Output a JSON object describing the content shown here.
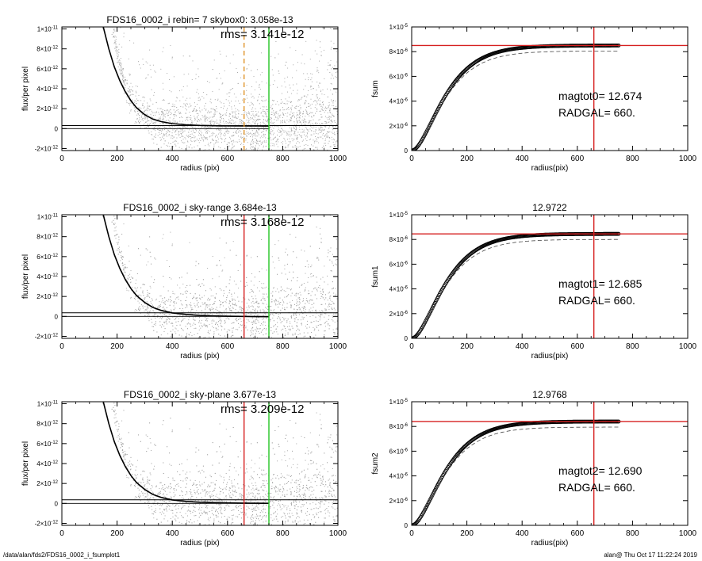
{
  "footer": {
    "left": "/data/alan/fds2/FDS16_0002_i_fsumplot1",
    "right": "alan@  Thu Oct 17 11:22:24 2019"
  },
  "colors": {
    "scatter": "#a8a8a8",
    "profile": "#000000",
    "red_marker": "#d62020",
    "green_marker": "#22c422",
    "orange_marker": "#e0952a",
    "dashed_curve": "#444444"
  },
  "chart_data": [
    {
      "type": "scatter",
      "panel": "left-1",
      "title": "FDS16_0002_i rebin= 7    skybox0:  3.058e-13",
      "annotation": "rms= 3.141e-12",
      "xlabel": "radius (pix)",
      "ylabel": "flux/per pixel",
      "xlim": [
        0,
        1000
      ],
      "ylim": [
        -2.2e-12,
        1.02e-11
      ],
      "xticks": [
        "0",
        "200",
        "400",
        "600",
        "800",
        "1000"
      ],
      "yticks": [
        {
          "value": -2e-12,
          "mant": "-2×10",
          "exp": "-12"
        },
        {
          "value": 0,
          "mant": "0",
          "exp": ""
        },
        {
          "value": 2e-12,
          "mant": "2×10",
          "exp": "-12"
        },
        {
          "value": 4e-12,
          "mant": "4×10",
          "exp": "-12"
        },
        {
          "value": 6e-12,
          "mant": "6×10",
          "exp": "-12"
        },
        {
          "value": 8e-12,
          "mant": "8×10",
          "exp": "-12"
        },
        {
          "value": 1e-11,
          "mant": "1×10",
          "exp": "-11"
        }
      ],
      "sky_level": 3.058e-13,
      "rms": 3.141e-12,
      "markers": [
        {
          "x": 660,
          "color": "#e0952a",
          "style": "dashed",
          "span": "full"
        },
        {
          "x": 750,
          "color": "#22c422",
          "style": "solid",
          "span": "full"
        }
      ],
      "profile": {
        "x": [
          150,
          170,
          190,
          210,
          230,
          250,
          270,
          300,
          330,
          360,
          400,
          450,
          500,
          550,
          600,
          650,
          700,
          750
        ],
        "y": [
          1.02e-11,
          8e-12,
          6.2e-12,
          4.8e-12,
          3.7e-12,
          2.8e-12,
          2.1e-12,
          1.4e-12,
          9.5e-13,
          7e-13,
          5e-13,
          3.8e-13,
          3.2e-13,
          2.9e-13,
          2.8e-13,
          2.7e-13,
          2.7e-13,
          2.6e-13
        ]
      }
    },
    {
      "type": "line",
      "panel": "right-1",
      "title": "",
      "xlabel": "radius(pix)",
      "ylabel": "fsum",
      "xlim": [
        0,
        1000
      ],
      "ylim": [
        0,
        1e-05
      ],
      "xticks": [
        "0",
        "200",
        "400",
        "600",
        "800",
        "1000"
      ],
      "yticks": [
        {
          "value": 0,
          "mant": "0",
          "exp": ""
        },
        {
          "value": 2e-06,
          "mant": "2×10",
          "exp": "-6"
        },
        {
          "value": 4e-06,
          "mant": "4×10",
          "exp": "-6"
        },
        {
          "value": 6e-06,
          "mant": "6×10",
          "exp": "-6"
        },
        {
          "value": 8e-06,
          "mant": "8×10",
          "exp": "-6"
        },
        {
          "value": 1e-05,
          "mant": "1×10",
          "exp": "-5"
        }
      ],
      "labels": [
        "magtot0=  12.674",
        "RADGAL=    660."
      ],
      "asymptote": 8.5e-06,
      "dashed_asymptote": 8.05e-06,
      "curve_xmax": 750,
      "vline_x": 660,
      "hline_y": 8.5e-06
    },
    {
      "type": "scatter",
      "panel": "left-2",
      "title": "FDS16_0002_i sky-range  3.684e-13",
      "annotation": "rms= 3.168e-12",
      "xlabel": "radius (pix)",
      "ylabel": "flux/per pixel",
      "xlim": [
        0,
        1000
      ],
      "ylim": [
        -2.2e-12,
        1.02e-11
      ],
      "xticks": [
        "0",
        "200",
        "400",
        "600",
        "800",
        "1000"
      ],
      "yticks": [
        {
          "value": -2e-12,
          "mant": "-2×10",
          "exp": "-12"
        },
        {
          "value": 0,
          "mant": "0",
          "exp": ""
        },
        {
          "value": 2e-12,
          "mant": "2×10",
          "exp": "-12"
        },
        {
          "value": 4e-12,
          "mant": "4×10",
          "exp": "-12"
        },
        {
          "value": 6e-12,
          "mant": "6×10",
          "exp": "-12"
        },
        {
          "value": 8e-12,
          "mant": "8×10",
          "exp": "-12"
        },
        {
          "value": 1e-11,
          "mant": "1×10",
          "exp": "-11"
        }
      ],
      "sky_level": 3.684e-13,
      "rms": 3.168e-12,
      "markers": [
        {
          "x": 660,
          "color": "#d62020",
          "style": "solid",
          "span": "full"
        },
        {
          "x": 750,
          "color": "#22c422",
          "style": "solid",
          "span": "full"
        }
      ],
      "profile": {
        "x": [
          150,
          170,
          190,
          210,
          230,
          250,
          270,
          300,
          330,
          360,
          400,
          450,
          500,
          550,
          600,
          650,
          700,
          750
        ],
        "y": [
          1.02e-11,
          8e-12,
          6.2e-12,
          4.8e-12,
          3.7e-12,
          2.8e-12,
          2.1e-12,
          1.4e-12,
          9e-13,
          6e-13,
          3.5e-13,
          2e-13,
          1e-13,
          5e-14,
          2e-14,
          0,
          -2e-14,
          -3e-14
        ]
      }
    },
    {
      "type": "line",
      "panel": "right-2",
      "title": "12.9722",
      "xlabel": "radius(pix)",
      "ylabel": "fsum1",
      "xlim": [
        0,
        1000
      ],
      "ylim": [
        0,
        1e-05
      ],
      "xticks": [
        "0",
        "200",
        "400",
        "600",
        "800",
        "1000"
      ],
      "yticks": [
        {
          "value": 0,
          "mant": "0",
          "exp": ""
        },
        {
          "value": 2e-06,
          "mant": "2×10",
          "exp": "-6"
        },
        {
          "value": 4e-06,
          "mant": "4×10",
          "exp": "-6"
        },
        {
          "value": 6e-06,
          "mant": "6×10",
          "exp": "-6"
        },
        {
          "value": 8e-06,
          "mant": "8×10",
          "exp": "-6"
        },
        {
          "value": 1e-05,
          "mant": "1×10",
          "exp": "-5"
        }
      ],
      "labels": [
        "magtot1=  12.685",
        "RADGAL=    660."
      ],
      "asymptote": 8.45e-06,
      "dashed_asymptote": 8e-06,
      "curve_xmax": 750,
      "vline_x": 660,
      "hline_y": 8.45e-06
    },
    {
      "type": "scatter",
      "panel": "left-3",
      "title": "FDS16_0002_i sky-plane  3.677e-13",
      "annotation": "rms= 3.209e-12",
      "xlabel": "radius (pix)",
      "ylabel": "flux/per pixel",
      "xlim": [
        0,
        1000
      ],
      "ylim": [
        -2.2e-12,
        1.02e-11
      ],
      "xticks": [
        "0",
        "200",
        "400",
        "600",
        "800",
        "1000"
      ],
      "yticks": [
        {
          "value": -2e-12,
          "mant": "-2×10",
          "exp": "-12"
        },
        {
          "value": 0,
          "mant": "0",
          "exp": ""
        },
        {
          "value": 2e-12,
          "mant": "2×10",
          "exp": "-12"
        },
        {
          "value": 4e-12,
          "mant": "4×10",
          "exp": "-12"
        },
        {
          "value": 6e-12,
          "mant": "6×10",
          "exp": "-12"
        },
        {
          "value": 8e-12,
          "mant": "8×10",
          "exp": "-12"
        },
        {
          "value": 1e-11,
          "mant": "1×10",
          "exp": "-11"
        }
      ],
      "sky_level": 3.677e-13,
      "rms": 3.209e-12,
      "markers": [
        {
          "x": 660,
          "color": "#d62020",
          "style": "solid",
          "span": "full"
        },
        {
          "x": 750,
          "color": "#22c422",
          "style": "solid",
          "span": "full"
        }
      ],
      "profile": {
        "x": [
          150,
          170,
          190,
          210,
          230,
          250,
          270,
          300,
          330,
          360,
          400,
          450,
          500,
          550,
          600,
          650,
          700,
          750
        ],
        "y": [
          1.02e-11,
          8e-12,
          6.2e-12,
          4.8e-12,
          3.7e-12,
          2.8e-12,
          2.1e-12,
          1.4e-12,
          9e-13,
          6e-13,
          3.5e-13,
          2e-13,
          1.2e-13,
          8e-14,
          5e-14,
          3e-14,
          2e-14,
          1e-14
        ]
      }
    },
    {
      "type": "line",
      "panel": "right-3",
      "title": "12.9768",
      "xlabel": "radius(pix)",
      "ylabel": "fsum2",
      "xlim": [
        0,
        1000
      ],
      "ylim": [
        0,
        1e-05
      ],
      "xticks": [
        "0",
        "200",
        "400",
        "600",
        "800",
        "1000"
      ],
      "yticks": [
        {
          "value": 0,
          "mant": "0",
          "exp": ""
        },
        {
          "value": 2e-06,
          "mant": "2×10",
          "exp": "-6"
        },
        {
          "value": 4e-06,
          "mant": "4×10",
          "exp": "-6"
        },
        {
          "value": 6e-06,
          "mant": "6×10",
          "exp": "-6"
        },
        {
          "value": 8e-06,
          "mant": "8×10",
          "exp": "-6"
        },
        {
          "value": 1e-05,
          "mant": "1×10",
          "exp": "-5"
        }
      ],
      "labels": [
        "magtot2=  12.690",
        "RADGAL=    660."
      ],
      "asymptote": 8.4e-06,
      "dashed_asymptote": 7.95e-06,
      "curve_xmax": 750,
      "vline_x": 660,
      "hline_y": 8.4e-06
    }
  ]
}
